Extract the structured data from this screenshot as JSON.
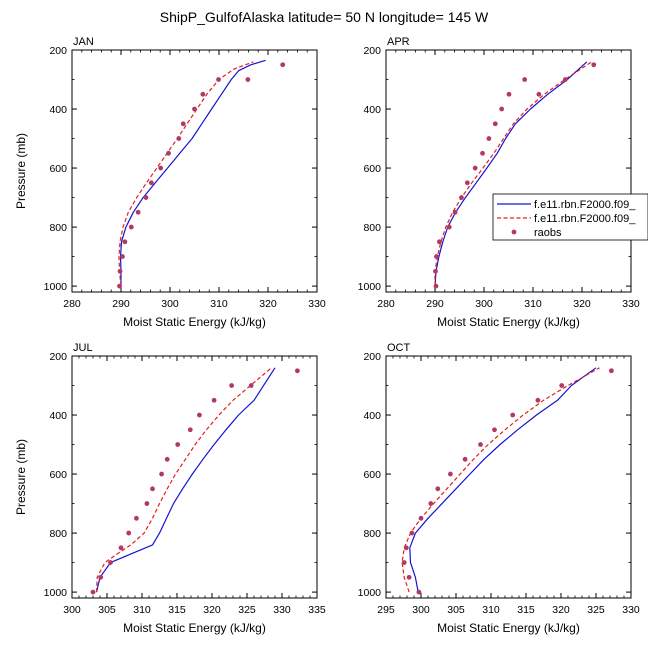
{
  "figure_title": "ShipP_GulfofAlaska  latitude= 50 N longitude= 145 W",
  "legend": [
    {
      "label": "f.e11.rbn.F2000.f09_",
      "color": "#1414d2",
      "style": "solid"
    },
    {
      "label": "f.e11.rbn.F2000.f09_",
      "color": "#e0201c",
      "style": "dashed"
    },
    {
      "label": "raobs",
      "color": "#b03a64",
      "style": "marker"
    }
  ],
  "chart_data": [
    {
      "type": "line",
      "title": "JAN",
      "xlabel": "Moist Static Energy (kJ/kg)",
      "ylabel": "Pressure (mb)",
      "xlim": [
        280,
        330
      ],
      "ylim": [
        200,
        1020
      ],
      "y_reversed": true,
      "xticks": [
        280,
        290,
        300,
        310,
        320,
        330
      ],
      "yticks": [
        200,
        400,
        600,
        800,
        1000
      ],
      "series": [
        {
          "name": "f.e11.rbn.F2000.f09_",
          "x": [
            290.0,
            290.0,
            289.9,
            290.1,
            291,
            292.5,
            294.5,
            297,
            299.5,
            302,
            304.5,
            306.5,
            308.5,
            310.5,
            312.5,
            314,
            316.5,
            319.5
          ],
          "y": [
            1000,
            950,
            900,
            850,
            800,
            750,
            700,
            650,
            600,
            550,
            500,
            450,
            400,
            350,
            300,
            270,
            250,
            235
          ]
        },
        {
          "name": "f.e11.rbn.F2000.f09_",
          "x": [
            290.0,
            289.7,
            289.6,
            289.8,
            290.4,
            291.5,
            293.2,
            295.2,
            297.3,
            299.4,
            301.5,
            303.5,
            305.5,
            307.5,
            310,
            313,
            317
          ],
          "y": [
            1000,
            950,
            900,
            850,
            800,
            750,
            700,
            650,
            600,
            550,
            500,
            450,
            400,
            350,
            300,
            265,
            240
          ]
        },
        {
          "name": "raobs",
          "x": [
            289.7,
            289.8,
            290.3,
            290.8,
            292.1,
            293.5,
            295.1,
            296.2,
            298.1,
            299.7,
            301.8,
            302.7,
            305.0,
            306.7,
            309.9,
            315.9,
            323.0
          ],
          "y": [
            1000,
            950,
            900,
            850,
            800,
            750,
            700,
            650,
            600,
            550,
            500,
            450,
            400,
            350,
            300,
            300,
            250
          ]
        }
      ]
    },
    {
      "type": "line",
      "title": "APR",
      "xlabel": "Moist Static Energy (kJ/kg)",
      "ylabel": "Pressure (mb)",
      "xlim": [
        280,
        330
      ],
      "ylim": [
        200,
        1020
      ],
      "y_reversed": true,
      "xticks": [
        280,
        290,
        300,
        310,
        320,
        330
      ],
      "yticks": [
        200,
        400,
        600,
        800,
        1000
      ],
      "series": [
        {
          "name": "f.e11.rbn.F2000.f09_",
          "x": [
            290.0,
            290.2,
            290.8,
            291.6,
            292.6,
            294.2,
            296.2,
            298.4,
            300.6,
            302.7,
            304.4,
            306.4,
            309.5,
            313,
            317,
            321
          ],
          "y": [
            1000,
            950,
            900,
            850,
            800,
            750,
            700,
            650,
            600,
            550,
            500,
            450,
            400,
            350,
            300,
            240
          ]
        },
        {
          "name": "f.e11.rbn.F2000.f09_",
          "x": [
            290.0,
            290.0,
            290.5,
            291.2,
            292.2,
            293.6,
            295.4,
            297.5,
            299.8,
            302.0,
            304.0,
            306.0,
            308.8,
            312.3,
            316.5,
            322
          ],
          "y": [
            1000,
            950,
            900,
            850,
            800,
            750,
            700,
            650,
            600,
            550,
            500,
            450,
            400,
            350,
            300,
            240
          ]
        },
        {
          "name": "raobs",
          "x": [
            290.2,
            290.1,
            290.3,
            290.9,
            292.9,
            294.1,
            295.4,
            296.6,
            298.2,
            299.7,
            301.0,
            302.3,
            303.6,
            305.1,
            308.3,
            311.2,
            316.6,
            322.4
          ],
          "y": [
            1000,
            950,
            900,
            850,
            800,
            750,
            700,
            650,
            600,
            550,
            500,
            450,
            400,
            350,
            300,
            350,
            300,
            250
          ]
        }
      ]
    },
    {
      "type": "line",
      "title": "JUL",
      "xlabel": "Moist Static Energy (kJ/kg)",
      "ylabel": "Pressure (mb)",
      "xlim": [
        300,
        335
      ],
      "ylim": [
        200,
        1020
      ],
      "y_reversed": true,
      "xticks": [
        300,
        305,
        310,
        315,
        320,
        325,
        330,
        335
      ],
      "yticks": [
        200,
        400,
        600,
        800,
        1000
      ],
      "series": [
        {
          "name": "f.e11.rbn.F2000.f09_",
          "x": [
            303.5,
            304.0,
            305.5,
            308.5,
            311.5,
            312.5,
            313.5,
            314.5,
            315.8,
            317.2,
            318.7,
            320.3,
            322,
            323.8,
            326,
            329
          ],
          "y": [
            1000,
            950,
            900,
            870,
            840,
            800,
            750,
            700,
            650,
            600,
            550,
            500,
            450,
            400,
            350,
            240
          ]
        },
        {
          "name": "f.e11.rbn.F2000.f09_",
          "x": [
            303.5,
            303.6,
            304.7,
            306.5,
            308.4,
            310.3,
            311.5,
            312.5,
            313.6,
            314.8,
            316.2,
            317.6,
            319.2,
            321.0,
            323.0,
            325.5,
            328.5
          ],
          "y": [
            1000,
            950,
            900,
            870,
            840,
            800,
            750,
            700,
            650,
            600,
            550,
            500,
            450,
            400,
            350,
            300,
            240
          ]
        },
        {
          "name": "raobs",
          "x": [
            303.0,
            304.1,
            305.5,
            307.0,
            308.1,
            309.2,
            310.7,
            311.5,
            312.8,
            313.6,
            315.1,
            316.9,
            318.2,
            320.3,
            322.8,
            325.6,
            332.2
          ],
          "y": [
            1000,
            950,
            900,
            850,
            800,
            750,
            700,
            650,
            600,
            550,
            500,
            450,
            400,
            350,
            300,
            300,
            250
          ]
        }
      ]
    },
    {
      "type": "line",
      "title": "OCT",
      "xlabel": "Moist Static Energy (kJ/kg)",
      "ylabel": "Pressure (mb)",
      "xlim": [
        295,
        330
      ],
      "ylim": [
        200,
        1020
      ],
      "y_reversed": true,
      "xticks": [
        295,
        300,
        305,
        310,
        315,
        320,
        325,
        330
      ],
      "yticks": [
        200,
        400,
        600,
        800,
        1000
      ],
      "series": [
        {
          "name": "f.e11.rbn.F2000.f09_",
          "x": [
            299.6,
            299.2,
            298.5,
            298.4,
            299.2,
            301.0,
            303.0,
            305.0,
            307.0,
            309.0,
            311.3,
            313.8,
            316.5,
            319.5,
            321.5,
            325
          ],
          "y": [
            1000,
            950,
            900,
            850,
            800,
            750,
            700,
            650,
            600,
            550,
            500,
            450,
            400,
            350,
            300,
            240
          ]
        },
        {
          "name": "f.e11.rbn.F2000.f09_",
          "x": [
            298.3,
            297.6,
            297.3,
            297.6,
            298.5,
            300.0,
            301.8,
            303.7,
            305.6,
            307.5,
            309.6,
            312.0,
            314.6,
            317.5,
            321.0,
            325.5
          ],
          "y": [
            1000,
            950,
            900,
            850,
            800,
            750,
            700,
            650,
            600,
            550,
            500,
            450,
            400,
            350,
            300,
            240
          ]
        },
        {
          "name": "raobs",
          "x": [
            299.7,
            298.3,
            297.6,
            297.9,
            298.7,
            300.0,
            301.4,
            302.4,
            304.2,
            306.3,
            308.5,
            310.5,
            313.1,
            316.7,
            320.1,
            327.2
          ],
          "y": [
            1000,
            950,
            900,
            850,
            800,
            750,
            700,
            650,
            600,
            550,
            500,
            450,
            400,
            350,
            300,
            250
          ]
        }
      ]
    }
  ]
}
